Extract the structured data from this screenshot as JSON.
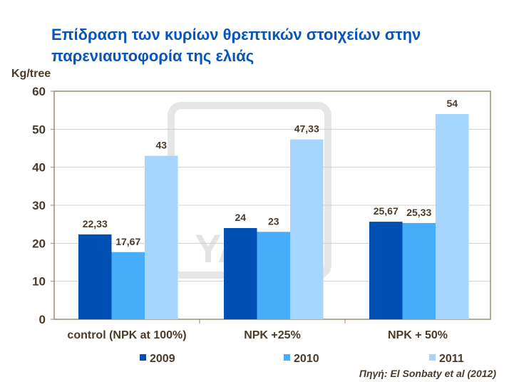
{
  "title": "Επίδραση των κυρίων θρεπτικών στοιχείων στην παρενιαυτοφορία της ελιάς",
  "source": "Πηγή: El Sonbaty et al (2012)",
  "watermark": "YARA",
  "chart_data": {
    "type": "bar",
    "title": "Επίδραση των κυρίων θρεπτικών στοιχείων στην παρενιαυτοφορία της ελιάς",
    "ylabel": "Kg/tree",
    "xlabel": "",
    "ylim": [
      0,
      60
    ],
    "yticks": [
      0,
      10,
      20,
      30,
      40,
      50,
      60
    ],
    "grid": true,
    "legend": "bottom",
    "categories": [
      "control (NPK at 100%)",
      "NPK +25%",
      "NPK + 50%"
    ],
    "series": [
      {
        "name": "2009",
        "color": "#0050b4",
        "values": [
          22.33,
          24,
          25.67
        ],
        "labels": [
          "22,33",
          "24",
          "25,67"
        ]
      },
      {
        "name": "2010",
        "color": "#45adfa",
        "values": [
          17.67,
          23,
          25.33
        ],
        "labels": [
          "17,67",
          "23",
          "25,33"
        ]
      },
      {
        "name": "2011",
        "color": "#a6d6fd",
        "values": [
          43,
          47.33,
          54
        ],
        "labels": [
          "43",
          "47,33",
          "54"
        ]
      }
    ]
  }
}
